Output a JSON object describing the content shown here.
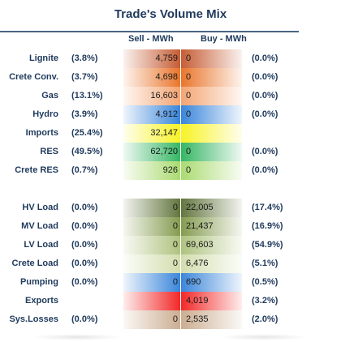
{
  "title": "Trade's Volume Mix",
  "columns": {
    "sell": "Sell - MWh",
    "buy": "Buy - MWh"
  },
  "rows": [
    {
      "label": "Lignite",
      "sell_pct": "(3.8%)",
      "sell": "4,759",
      "buy": "0",
      "buy_pct": "(0.0%)",
      "sell_color": "#c2542a",
      "buy_color": "#c2542a"
    },
    {
      "label": "Crete Conv.",
      "sell_pct": "(3.7%)",
      "sell": "4,698",
      "buy": "0",
      "buy_pct": "(0.0%)",
      "sell_color": "#e86e20",
      "buy_color": "#e86e20"
    },
    {
      "label": "Gas",
      "sell_pct": "(13.1%)",
      "sell": "16,603",
      "buy": "0",
      "buy_pct": "(0.0%)",
      "sell_color": "#f3a06b",
      "buy_color": "#f3a06b"
    },
    {
      "label": "Hydro",
      "sell_pct": "(3.9%)",
      "sell": "4,912",
      "buy": "0",
      "buy_pct": "(0.0%)",
      "sell_color": "#2f7fd8",
      "buy_color": "#2f7fd8"
    },
    {
      "label": "Imports",
      "sell_pct": "(25.4%)",
      "sell": "32,147",
      "buy": "",
      "buy_pct": "",
      "sell_color": "#f7f21a",
      "buy_color": "#f7f21a"
    },
    {
      "label": "RES",
      "sell_pct": "(49.5%)",
      "sell": "62,720",
      "buy": "0",
      "buy_pct": "(0.0%)",
      "sell_color": "#2bb25c",
      "buy_color": "#2bb25c"
    },
    {
      "label": "Crete RES",
      "sell_pct": "(0.7%)",
      "sell": "926",
      "buy": "0",
      "buy_pct": "(0.0%)",
      "sell_color": "#a6d96a",
      "buy_color": "#a6d96a"
    },
    {
      "label": "HV Load",
      "sell_pct": "(0.0%)",
      "sell": "0",
      "buy": "22,005",
      "buy_pct": "(17.4%)",
      "sell_color": "#5b6e34",
      "buy_color": "#5b6e34"
    },
    {
      "label": "MV Load",
      "sell_pct": "(0.0%)",
      "sell": "0",
      "buy": "21,437",
      "buy_pct": "(16.9%)",
      "sell_color": "#7e9646",
      "buy_color": "#7e9646"
    },
    {
      "label": "LV Load",
      "sell_pct": "(0.0%)",
      "sell": "0",
      "buy": "69,603",
      "buy_pct": "(54.9%)",
      "sell_color": "#aabf78",
      "buy_color": "#aabf78"
    },
    {
      "label": "Crete Load",
      "sell_pct": "(0.0%)",
      "sell": "0",
      "buy": "6,476",
      "buy_pct": "(5.1%)",
      "sell_color": "#cfdcaa",
      "buy_color": "#cfdcaa"
    },
    {
      "label": "Pumping",
      "sell_pct": "(0.0%)",
      "sell": "0",
      "buy": "690",
      "buy_pct": "(0.5%)",
      "sell_color": "#2f7fd8",
      "buy_color": "#2f7fd8"
    },
    {
      "label": "Exports",
      "sell_pct": "",
      "sell": "",
      "buy": "4,019",
      "buy_pct": "(3.2%)",
      "sell_color": "#f21c1c",
      "buy_color": "#f21c1c"
    },
    {
      "label": "Sys.Losses",
      "sell_pct": "(0.0%)",
      "sell": "0",
      "buy": "2,535",
      "buy_pct": "(2.0%)",
      "sell_color": "#c9a98c",
      "buy_color": "#c9a98c"
    }
  ]
}
